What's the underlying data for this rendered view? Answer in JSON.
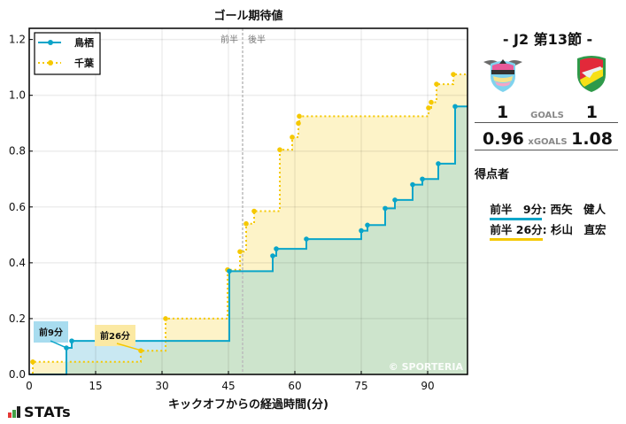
{
  "chart_data": {
    "type": "line",
    "title": "ゴール期待値",
    "xlabel": "キックオフからの経過時間(分)",
    "ylabel": "",
    "xlim": [
      0,
      99
    ],
    "ylim": [
      0,
      1.24
    ],
    "xticks": [
      0,
      15,
      30,
      45,
      60,
      75,
      90
    ],
    "yticks": [
      0.0,
      0.2,
      0.4,
      0.6,
      0.8,
      1.0,
      1.2
    ],
    "grid": true,
    "legend_position": "upper left",
    "half_marker": {
      "x": 48.2,
      "left_label": "前半",
      "right_label": "後半"
    },
    "watermark": "© SPORTERIA",
    "series": [
      {
        "name": "鳥栖",
        "color": "#0aa5c9",
        "fill": "#c9e8f2",
        "style": "solid",
        "points": [
          [
            0,
            0
          ],
          [
            8.4,
            0.095
          ],
          [
            9.6,
            0.12
          ],
          [
            45.2,
            0.37
          ],
          [
            55.0,
            0.425
          ],
          [
            55.8,
            0.45
          ],
          [
            62.6,
            0.485
          ],
          [
            75.0,
            0.515
          ],
          [
            76.4,
            0.535
          ],
          [
            80.4,
            0.595
          ],
          [
            82.6,
            0.625
          ],
          [
            86.6,
            0.68
          ],
          [
            88.8,
            0.7
          ],
          [
            92.4,
            0.755
          ],
          [
            96.2,
            0.96
          ],
          [
            99,
            0.96
          ]
        ]
      },
      {
        "name": "千葉",
        "color": "#f5c800",
        "fill": "#fdf3c8",
        "style": "dotted",
        "points": [
          [
            0.8,
            0.045
          ],
          [
            25.2,
            0.085
          ],
          [
            30.8,
            0.2
          ],
          [
            44.8,
            0.375
          ],
          [
            47.6,
            0.44
          ],
          [
            49.0,
            0.54
          ],
          [
            50.8,
            0.585
          ],
          [
            56.6,
            0.805
          ],
          [
            59.4,
            0.85
          ],
          [
            60.8,
            0.9
          ],
          [
            61.0,
            0.925
          ],
          [
            90.2,
            0.955
          ],
          [
            90.8,
            0.975
          ],
          [
            92.0,
            1.04
          ],
          [
            95.8,
            1.075
          ],
          [
            99,
            1.075
          ]
        ]
      }
    ],
    "annotations": [
      {
        "text": "前9分",
        "x": 8.4,
        "y": 0.095,
        "color": "#a8dcef"
      },
      {
        "text": "前26分",
        "x": 25.2,
        "y": 0.085,
        "color": "#fbe9a3"
      }
    ]
  },
  "match": {
    "round": "- J2 第13節 -",
    "home": {
      "name": "鳥栖",
      "goals": "1",
      "xgoals": "0.96"
    },
    "away": {
      "name": "千葉",
      "goals": "1",
      "xgoals": "1.08"
    },
    "goals_label": "GOALS",
    "xgoals_label": "xGOALS"
  },
  "scorers": {
    "title": "得点者",
    "items": [
      {
        "time": "前半　9分",
        "name": ": 西矢　健人",
        "color": "#0aa5c9"
      },
      {
        "time": "前半 26分",
        "name": ": 杉山　直宏",
        "color": "#f5c800"
      }
    ]
  },
  "brand": {
    "stats_label": "STATs"
  }
}
